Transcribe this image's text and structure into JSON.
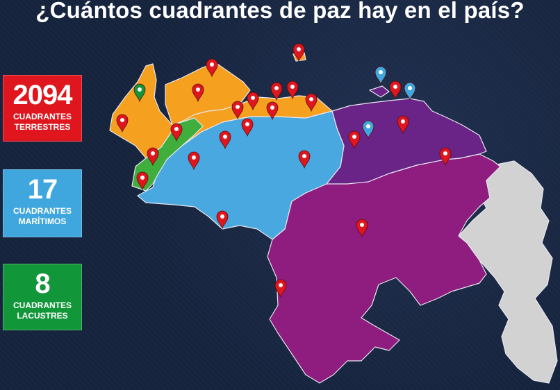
{
  "title": "¿Cuántos cuadrantes de paz hay en el país?",
  "colors": {
    "background": "#16233d",
    "terrestres": "#e0161e",
    "maritimos": "#3fa6de",
    "lacustres": "#12963a",
    "region_orange": "#f5a01e",
    "region_lightblue": "#4aa8e0",
    "region_green": "#3fae3c",
    "region_darkpurple": "#6a2488",
    "region_magenta": "#8f1c7f",
    "region_gray": "#d2d2d2"
  },
  "stats": [
    {
      "number": "2094",
      "label_line1": "CUADRANTES",
      "label_line2": "TERRESTRES",
      "color": "#e0161e"
    },
    {
      "number": "17",
      "label_line1": "CUADRANTES",
      "label_line2": "MARÍTIMOS",
      "color": "#3fa6de"
    },
    {
      "number": "8",
      "label_line1": "CUADRANTES",
      "label_line2": "LACUSTRES",
      "color": "#12963a"
    }
  ],
  "markers": {
    "red_count": 24,
    "blue_count": 3,
    "green_count": 1
  }
}
